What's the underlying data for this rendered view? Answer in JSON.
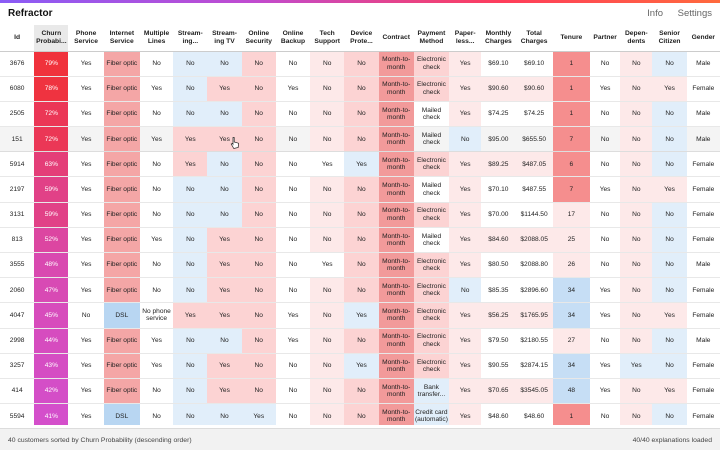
{
  "app": {
    "title": "Refractor",
    "nav": [
      "Info",
      "Settings"
    ]
  },
  "colors": {
    "accent_gradient": [
      "#8a5cf6",
      "#c04bd0",
      "#ff3d5a",
      "#ff6a3d"
    ],
    "risk_high": "#f4a0a0",
    "risk_mid": "#fbd6d6",
    "risk_low_blue": "#dcecfa",
    "risk_blue": "#b9d8f5"
  },
  "columns": [
    "Id",
    "Churn Probabi...",
    "Phone Service",
    "Internet Service",
    "Multiple Lines",
    "Stream-ing...",
    "Stream-ing TV",
    "Online Security",
    "Online Backup",
    "Tech Support",
    "Device Prote...",
    "Contract",
    "Payment Method",
    "Paper-less...",
    "Monthly Charges",
    "Total Charges",
    "Tenure",
    "Partner",
    "Depen-dents",
    "Senior Citizen",
    "Gender"
  ],
  "rows": [
    [
      "3676",
      "79%",
      "Yes",
      "Fiber optic",
      "No",
      "No",
      "No",
      "No",
      "No",
      "No",
      "No",
      "Month-to-month",
      "Electronic check",
      "Yes",
      "$69.10",
      "$69.10",
      "1",
      "No",
      "No",
      "No",
      "Male"
    ],
    [
      "6080",
      "78%",
      "Yes",
      "Fiber optic",
      "Yes",
      "No",
      "Yes",
      "No",
      "Yes",
      "No",
      "No",
      "Month-to-month",
      "Electronic check",
      "Yes",
      "$90.60",
      "$90.60",
      "1",
      "Yes",
      "No",
      "Yes",
      "Female"
    ],
    [
      "2505",
      "72%",
      "Yes",
      "Fiber optic",
      "No",
      "No",
      "No",
      "No",
      "No",
      "No",
      "No",
      "Month-to-month",
      "Mailed check",
      "Yes",
      "$74.25",
      "$74.25",
      "1",
      "No",
      "No",
      "No",
      "Male"
    ],
    [
      "151",
      "72%",
      "Yes",
      "Fiber optic",
      "Yes",
      "Yes",
      "Yes",
      "No",
      "No",
      "No",
      "No",
      "Month-to-month",
      "Mailed check",
      "No",
      "$95.00",
      "$655.50",
      "7",
      "No",
      "No",
      "No",
      "Male"
    ],
    [
      "5914",
      "63%",
      "Yes",
      "Fiber optic",
      "No",
      "Yes",
      "No",
      "No",
      "No",
      "Yes",
      "Yes",
      "Month-to-month",
      "Electronic check",
      "Yes",
      "$89.25",
      "$487.05",
      "6",
      "No",
      "No",
      "No",
      "Female"
    ],
    [
      "2197",
      "59%",
      "Yes",
      "Fiber optic",
      "No",
      "No",
      "No",
      "No",
      "No",
      "No",
      "No",
      "Month-to-month",
      "Mailed check",
      "Yes",
      "$70.10",
      "$487.55",
      "7",
      "Yes",
      "No",
      "Yes",
      "Female"
    ],
    [
      "3131",
      "59%",
      "Yes",
      "Fiber optic",
      "No",
      "No",
      "No",
      "No",
      "No",
      "No",
      "No",
      "Month-to-month",
      "Electronic check",
      "Yes",
      "$70.00",
      "$1144.50",
      "17",
      "No",
      "No",
      "No",
      "Female"
    ],
    [
      "813",
      "52%",
      "Yes",
      "Fiber optic",
      "Yes",
      "No",
      "Yes",
      "No",
      "No",
      "No",
      "No",
      "Month-to-month",
      "Mailed check",
      "Yes",
      "$84.60",
      "$2088.05",
      "25",
      "No",
      "No",
      "No",
      "Female"
    ],
    [
      "3555",
      "48%",
      "Yes",
      "Fiber optic",
      "No",
      "No",
      "Yes",
      "No",
      "No",
      "Yes",
      "No",
      "Month-to-month",
      "Electronic check",
      "Yes",
      "$80.50",
      "$2088.80",
      "26",
      "No",
      "No",
      "No",
      "Male"
    ],
    [
      "2060",
      "47%",
      "Yes",
      "Fiber optic",
      "No",
      "No",
      "Yes",
      "No",
      "No",
      "No",
      "No",
      "Month-to-month",
      "Electronic check",
      "No",
      "$85.35",
      "$2896.60",
      "34",
      "Yes",
      "No",
      "No",
      "Female"
    ],
    [
      "4047",
      "45%",
      "No",
      "DSL",
      "No phone service",
      "Yes",
      "Yes",
      "No",
      "Yes",
      "No",
      "Yes",
      "Month-to-month",
      "Electronic check",
      "Yes",
      "$56.25",
      "$1765.95",
      "34",
      "Yes",
      "No",
      "Yes",
      "Female"
    ],
    [
      "2998",
      "44%",
      "Yes",
      "Fiber optic",
      "Yes",
      "No",
      "No",
      "No",
      "Yes",
      "No",
      "No",
      "Month-to-month",
      "Electronic check",
      "Yes",
      "$79.50",
      "$2180.55",
      "27",
      "No",
      "No",
      "No",
      "Male"
    ],
    [
      "3257",
      "43%",
      "Yes",
      "Fiber optic",
      "Yes",
      "No",
      "Yes",
      "No",
      "No",
      "No",
      "Yes",
      "Month-to-month",
      "Electronic check",
      "Yes",
      "$90.55",
      "$2874.15",
      "34",
      "Yes",
      "Yes",
      "No",
      "Female"
    ],
    [
      "414",
      "42%",
      "Yes",
      "Fiber optic",
      "No",
      "No",
      "Yes",
      "No",
      "No",
      "No",
      "No",
      "Month-to-month",
      "Bank transfer...",
      "Yes",
      "$70.65",
      "$3545.05",
      "48",
      "Yes",
      "No",
      "Yes",
      "Female"
    ],
    [
      "5594",
      "41%",
      "Yes",
      "DSL",
      "No",
      "No",
      "No",
      "Yes",
      "No",
      "No",
      "No",
      "Month-to-month",
      "Credit card (automatic)",
      "Yes",
      "$48.60",
      "$48.60",
      "1",
      "No",
      "No",
      "No",
      "Female"
    ]
  ],
  "footer": {
    "left": "40 customers sorted by Churn Probability (descending order)",
    "right": "40/40 explanations loaded"
  }
}
